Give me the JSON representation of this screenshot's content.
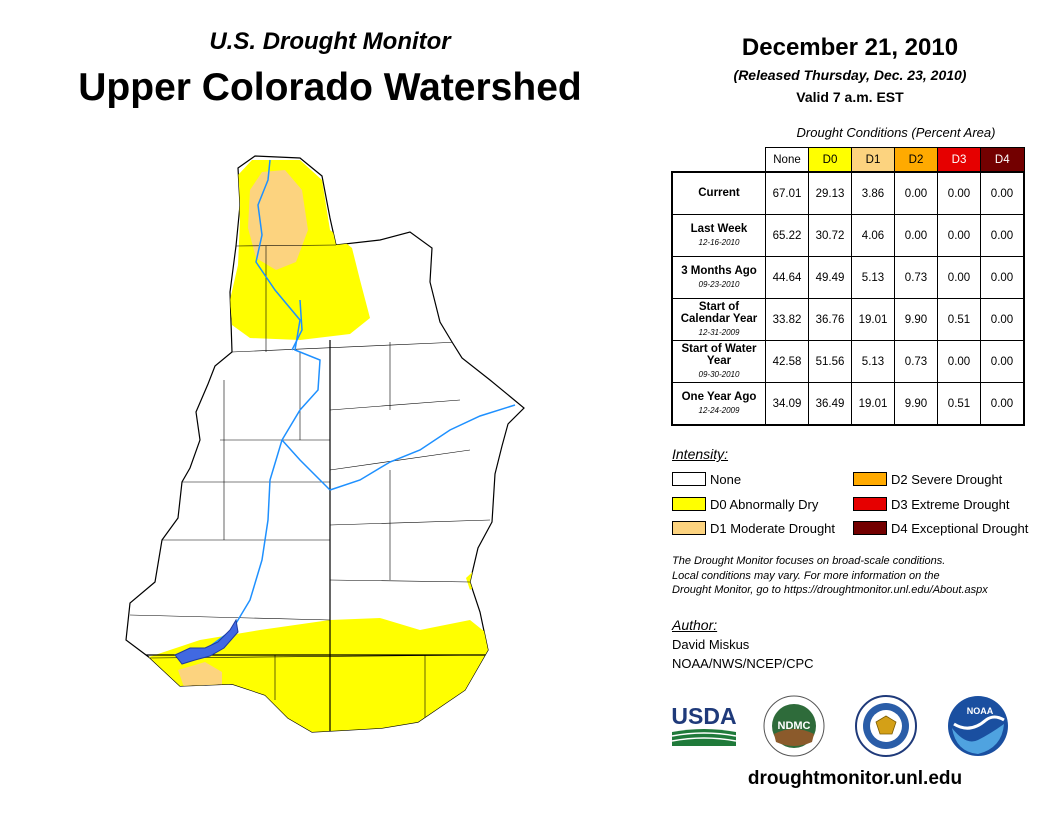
{
  "header": {
    "subtitle": "U.S. Drought Monitor",
    "title": "Upper Colorado Watershed",
    "date": "December 21, 2010",
    "released": "(Released Thursday, Dec. 23, 2010)",
    "valid": "Valid 7 a.m. EST"
  },
  "conditions": {
    "title": "Drought Conditions (Percent Area)",
    "columns": [
      "None",
      "D0",
      "D1",
      "D2",
      "D3",
      "D4"
    ],
    "column_colors": [
      "#ffffff",
      "#ffff00",
      "#fcd37f",
      "#ffaa00",
      "#e60000",
      "#730000"
    ],
    "rows": [
      {
        "label": "Current",
        "date": "",
        "values": [
          "67.01",
          "29.13",
          "3.86",
          "0.00",
          "0.00",
          "0.00"
        ]
      },
      {
        "label": "Last Week",
        "date": "12-16-2010",
        "values": [
          "65.22",
          "30.72",
          "4.06",
          "0.00",
          "0.00",
          "0.00"
        ]
      },
      {
        "label": "3 Months Ago",
        "date": "09-23-2010",
        "values": [
          "44.64",
          "49.49",
          "5.13",
          "0.73",
          "0.00",
          "0.00"
        ]
      },
      {
        "label": "Start of Calendar Year",
        "date": "12-31-2009",
        "values": [
          "33.82",
          "36.76",
          "19.01",
          "9.90",
          "0.51",
          "0.00"
        ]
      },
      {
        "label": "Start of Water Year",
        "date": "09-30-2010",
        "values": [
          "42.58",
          "51.56",
          "5.13",
          "0.73",
          "0.00",
          "0.00"
        ]
      },
      {
        "label": "One Year Ago",
        "date": "12-24-2009",
        "values": [
          "34.09",
          "36.49",
          "19.01",
          "9.90",
          "0.51",
          "0.00"
        ]
      }
    ]
  },
  "legend": {
    "title": "Intensity:",
    "items": [
      {
        "label": "None",
        "color": "#ffffff"
      },
      {
        "label": "D0 Abnormally Dry",
        "color": "#ffff00"
      },
      {
        "label": "D1 Moderate Drought",
        "color": "#fcd37f"
      },
      {
        "label": "D2 Severe Drought",
        "color": "#ffaa00"
      },
      {
        "label": "D3 Extreme Drought",
        "color": "#e60000"
      },
      {
        "label": "D4 Exceptional Drought",
        "color": "#730000"
      }
    ]
  },
  "note": [
    "The Drought Monitor focuses on broad-scale conditions.",
    "Local conditions may vary. For more information on the",
    "Drought Monitor, go to https://droughtmonitor.unl.edu/About.aspx"
  ],
  "author": {
    "title": "Author:",
    "name": "David Miskus",
    "org": "NOAA/NWS/NCEP/CPC"
  },
  "logos": {
    "usda": "USDA",
    "ndmc": "NDMC",
    "noaa": "NOAA"
  },
  "footer": {
    "site": "droughtmonitor.unl.edu"
  }
}
